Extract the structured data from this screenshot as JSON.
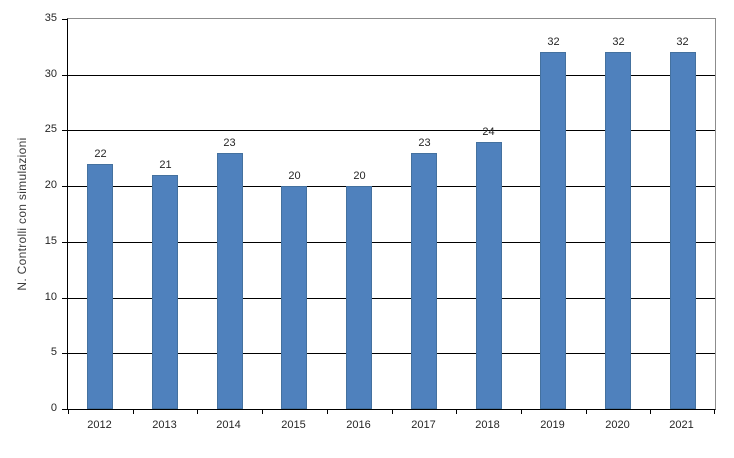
{
  "chart_data": {
    "type": "bar",
    "title": "",
    "xlabel": "",
    "ylabel": "N. Controlli con simulazioni",
    "categories": [
      "2012",
      "2013",
      "2014",
      "2015",
      "2016",
      "2017",
      "2018",
      "2019",
      "2020",
      "2021"
    ],
    "values": [
      22,
      21,
      23,
      20,
      20,
      23,
      24,
      32,
      32,
      32
    ],
    "ylim": [
      0,
      35
    ],
    "ytick_step": 5,
    "ytick_labels": [
      "0",
      "5",
      "10",
      "15",
      "20",
      "25",
      "30",
      "35"
    ],
    "grid": true,
    "legend_position": "none",
    "data_labels": true,
    "colors": {
      "bar_fill": "#4F81BD",
      "bar_border": "#44719F",
      "gridline": "#000000",
      "axis": "#000000",
      "plot_border": "#8C8C8C",
      "text": "#262626",
      "background": "#FFFFFF"
    }
  }
}
